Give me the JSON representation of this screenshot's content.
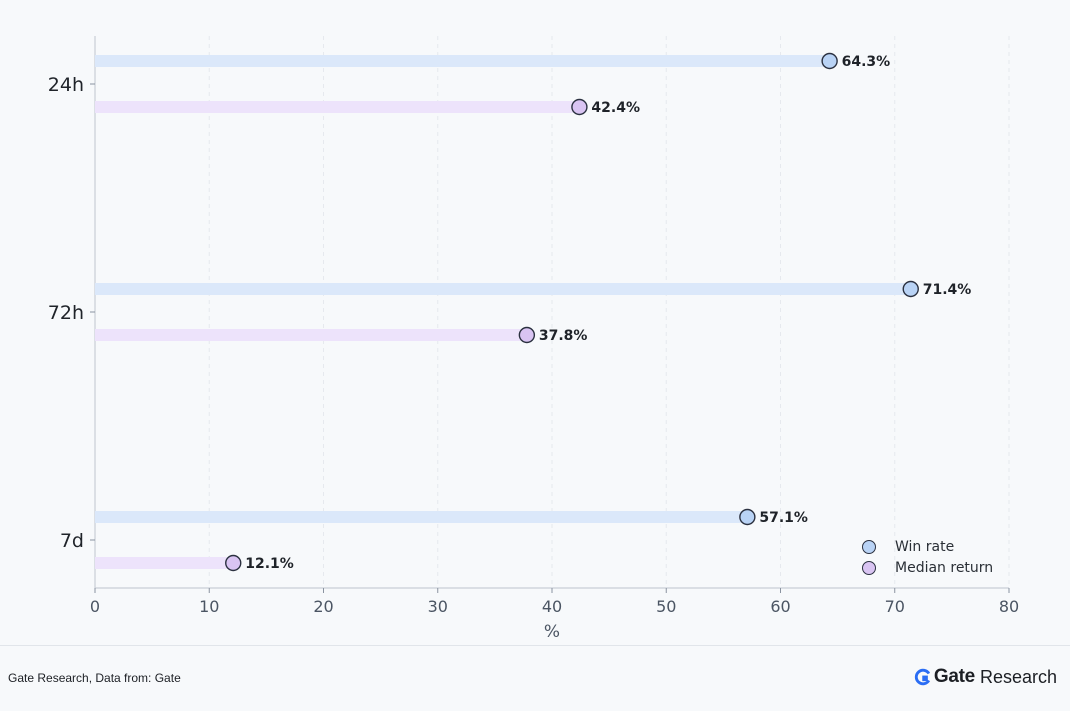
{
  "chart_data": {
    "type": "dot-lollipop (horizontal)",
    "categories": [
      "24h",
      "72h",
      "7d"
    ],
    "series": [
      {
        "name": "Win rate",
        "values": [
          64.3,
          71.4,
          57.1
        ],
        "color": "#b9d3f5",
        "track_color": "#dbe8fa"
      },
      {
        "name": "Median return",
        "values": [
          42.4,
          37.8,
          12.1
        ],
        "color": "#d9c4f2",
        "track_color": "#ede3fb"
      }
    ],
    "value_labels": {
      "Win rate": [
        "64.3%",
        "71.4%",
        "57.1%"
      ],
      "Median return": [
        "42.4%",
        "37.8%",
        "12.1%"
      ]
    },
    "xlabel": "%",
    "ylabel": "",
    "xlim": [
      0,
      80
    ],
    "xticks": [
      "0",
      "10",
      "20",
      "30",
      "40",
      "50",
      "60",
      "70",
      "80"
    ],
    "grid": "vertical dashed",
    "legend_position": "lower-right"
  },
  "footer": {
    "source": "Gate Research, Data from: Gate",
    "brand_strong": "Gate",
    "brand_light": "Research"
  },
  "colors": {
    "background": "#f7f9fb",
    "axis": "#c9ced6",
    "grid": "#e6e9ee",
    "marker_outline": "#2b3140",
    "brand_blue": "#2a6df4"
  }
}
